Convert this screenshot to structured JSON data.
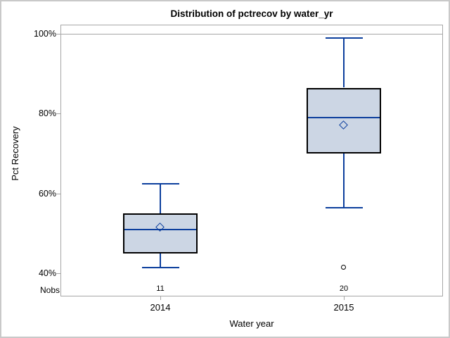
{
  "chart_data": {
    "type": "box",
    "title": "Distribution of pctrecov by water_yr",
    "xlabel": "Water year",
    "ylabel": "Pct Recovery",
    "yticks": [
      {
        "value": 100,
        "label": "100%"
      },
      {
        "value": 80,
        "label": "80%"
      },
      {
        "value": 60,
        "label": "60%"
      },
      {
        "value": 40,
        "label": "40%"
      }
    ],
    "y_axis_range_ticks": [
      40,
      100
    ],
    "grid": "line at 100% level only, gray frame around plot",
    "legend": "none",
    "nobs_row_label": "Nobs",
    "categories": [
      "2014",
      "2015"
    ],
    "series": [
      {
        "category": "2014",
        "nobs": "11",
        "whisker_low": 41.5,
        "q1": 45,
        "median": 51,
        "mean": 51.5,
        "q3": 55,
        "whisker_high": 62.5,
        "outliers": []
      },
      {
        "category": "2015",
        "nobs": "20",
        "whisker_low": 56.5,
        "q1": 70,
        "median": 79,
        "mean": 77,
        "q3": 86.5,
        "whisker_high": 99,
        "outliers": [
          41.5
        ]
      }
    ],
    "colors": {
      "box_fill": "#ccd6e4",
      "box_border": "#000000",
      "line_blue": "#0c3f9d",
      "frame_gray": "#a6a6a6",
      "text": "#000000"
    }
  }
}
